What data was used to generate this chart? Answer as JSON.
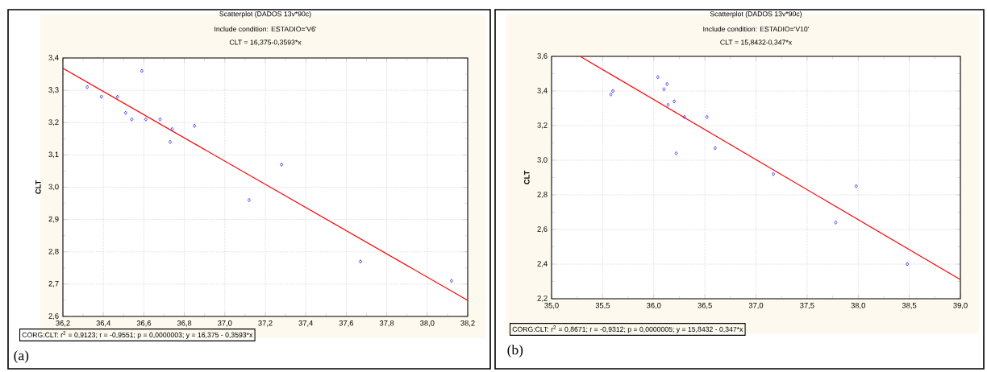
{
  "chart_data": [
    {
      "type": "scatter",
      "title": "Scatterplot (DADOS 13v*90c)",
      "subtitle": "Include condition: ESTADIO='V6'",
      "ylabel": "CLT",
      "annotations": [
        "CLT = 16,375-0,3593*x",
        "CORG:CLT:  r$^{2}$ = 0,9123;  r = -0,9551; p = 0,0000003;  y = 16,375 - 0,3593*x",
        "(a)"
      ],
      "xlim": [
        36.2,
        38.2
      ],
      "ylim": [
        2.6,
        3.4
      ],
      "xticks": [
        {
          "value": 36.2,
          "label": "36,2"
        },
        {
          "value": 36.4,
          "label": "36,4"
        },
        {
          "value": 36.6,
          "label": "36,6"
        },
        {
          "value": 36.8,
          "label": "36,8"
        },
        {
          "value": 37.0,
          "label": "37,0"
        },
        {
          "value": 37.2,
          "label": "37,2"
        },
        {
          "value": 37.4,
          "label": "37,4"
        },
        {
          "value": 37.6,
          "label": "37,6"
        },
        {
          "value": 37.8,
          "label": "37,8"
        },
        {
          "value": 38.0,
          "label": "38,0"
        },
        {
          "value": 38.2,
          "label": "38,2"
        }
      ],
      "yticks": [
        {
          "value": 2.6,
          "label": "2,6"
        },
        {
          "value": 2.7,
          "label": "2,7"
        },
        {
          "value": 2.8,
          "label": "2,8"
        },
        {
          "value": 2.9,
          "label": "2,9"
        },
        {
          "value": 3.0,
          "label": "3,0"
        },
        {
          "value": 3.1,
          "label": "3,1"
        },
        {
          "value": 3.2,
          "label": "3,2"
        },
        {
          "value": 3.3,
          "label": "3,3"
        },
        {
          "value": 3.4,
          "label": "3,4"
        }
      ],
      "grid": true,
      "marker": "diamond",
      "series": [
        {
          "color": "#0000ff",
          "x": [
            36.32,
            36.39,
            36.47,
            36.51,
            36.54,
            36.59,
            36.61,
            36.68,
            36.74,
            36.73,
            36.85,
            37.28,
            37.12,
            37.67,
            38.12
          ],
          "values": [
            3.31,
            3.28,
            3.28,
            3.23,
            3.21,
            3.36,
            3.21,
            3.21,
            3.18,
            3.14,
            3.19,
            3.07,
            2.96,
            2.77,
            2.71
          ]
        },
        {
          "type": "line",
          "color": "#ff0000",
          "marker": "none",
          "x": [
            36.2,
            38.2
          ],
          "values": [
            3.368,
            2.65
          ]
        }
      ]
    },
    {
      "type": "scatter",
      "title": "Scatterplot (DADOS 13v*90c)",
      "subtitle": "Include condition: ESTADIO='V10'",
      "ylabel": "CLT",
      "annotations": [
        "CLT = 15,8432-0,347*x",
        "CORG:CLT:  r$^{2}$ = 0,8671;  r = -0,9312; p = 0,0000005;  y = 15,8432 - 0,347*x",
        "(b)"
      ],
      "xlim": [
        35.0,
        39.0
      ],
      "ylim": [
        2.2,
        3.6
      ],
      "xticks": [
        {
          "value": 35.0,
          "label": "35,0"
        },
        {
          "value": 35.5,
          "label": "35,5"
        },
        {
          "value": 36.0,
          "label": "36,0"
        },
        {
          "value": 36.5,
          "label": "36,5"
        },
        {
          "value": 37.0,
          "label": "37,0"
        },
        {
          "value": 37.5,
          "label": "37,5"
        },
        {
          "value": 38.0,
          "label": "38,0"
        },
        {
          "value": 38.5,
          "label": "38,5"
        },
        {
          "value": 39.0,
          "label": "39,0"
        }
      ],
      "yticks": [
        {
          "value": 2.2,
          "label": "2,2"
        },
        {
          "value": 2.4,
          "label": "2,4"
        },
        {
          "value": 2.6,
          "label": "2,6"
        },
        {
          "value": 2.8,
          "label": "2,8"
        },
        {
          "value": 3.0,
          "label": "3,0"
        },
        {
          "value": 3.2,
          "label": "3,2"
        },
        {
          "value": 3.4,
          "label": "3,4"
        },
        {
          "value": 3.6,
          "label": "3,6"
        }
      ],
      "grid": true,
      "marker": "diamond",
      "series": [
        {
          "color": "#0000ff",
          "x": [
            35.58,
            35.6,
            36.04,
            36.1,
            36.13,
            36.14,
            36.2,
            36.3,
            36.52,
            36.22,
            36.6,
            37.17,
            37.98,
            37.78,
            38.48
          ],
          "values": [
            3.38,
            3.4,
            3.48,
            3.41,
            3.44,
            3.32,
            3.34,
            3.25,
            3.25,
            3.04,
            3.07,
            2.92,
            2.85,
            2.64,
            2.4
          ]
        },
        {
          "type": "line",
          "color": "#ff0000",
          "marker": "none",
          "x": [
            35.28,
            39.0
          ],
          "values": [
            3.6,
            2.31
          ]
        }
      ]
    }
  ]
}
